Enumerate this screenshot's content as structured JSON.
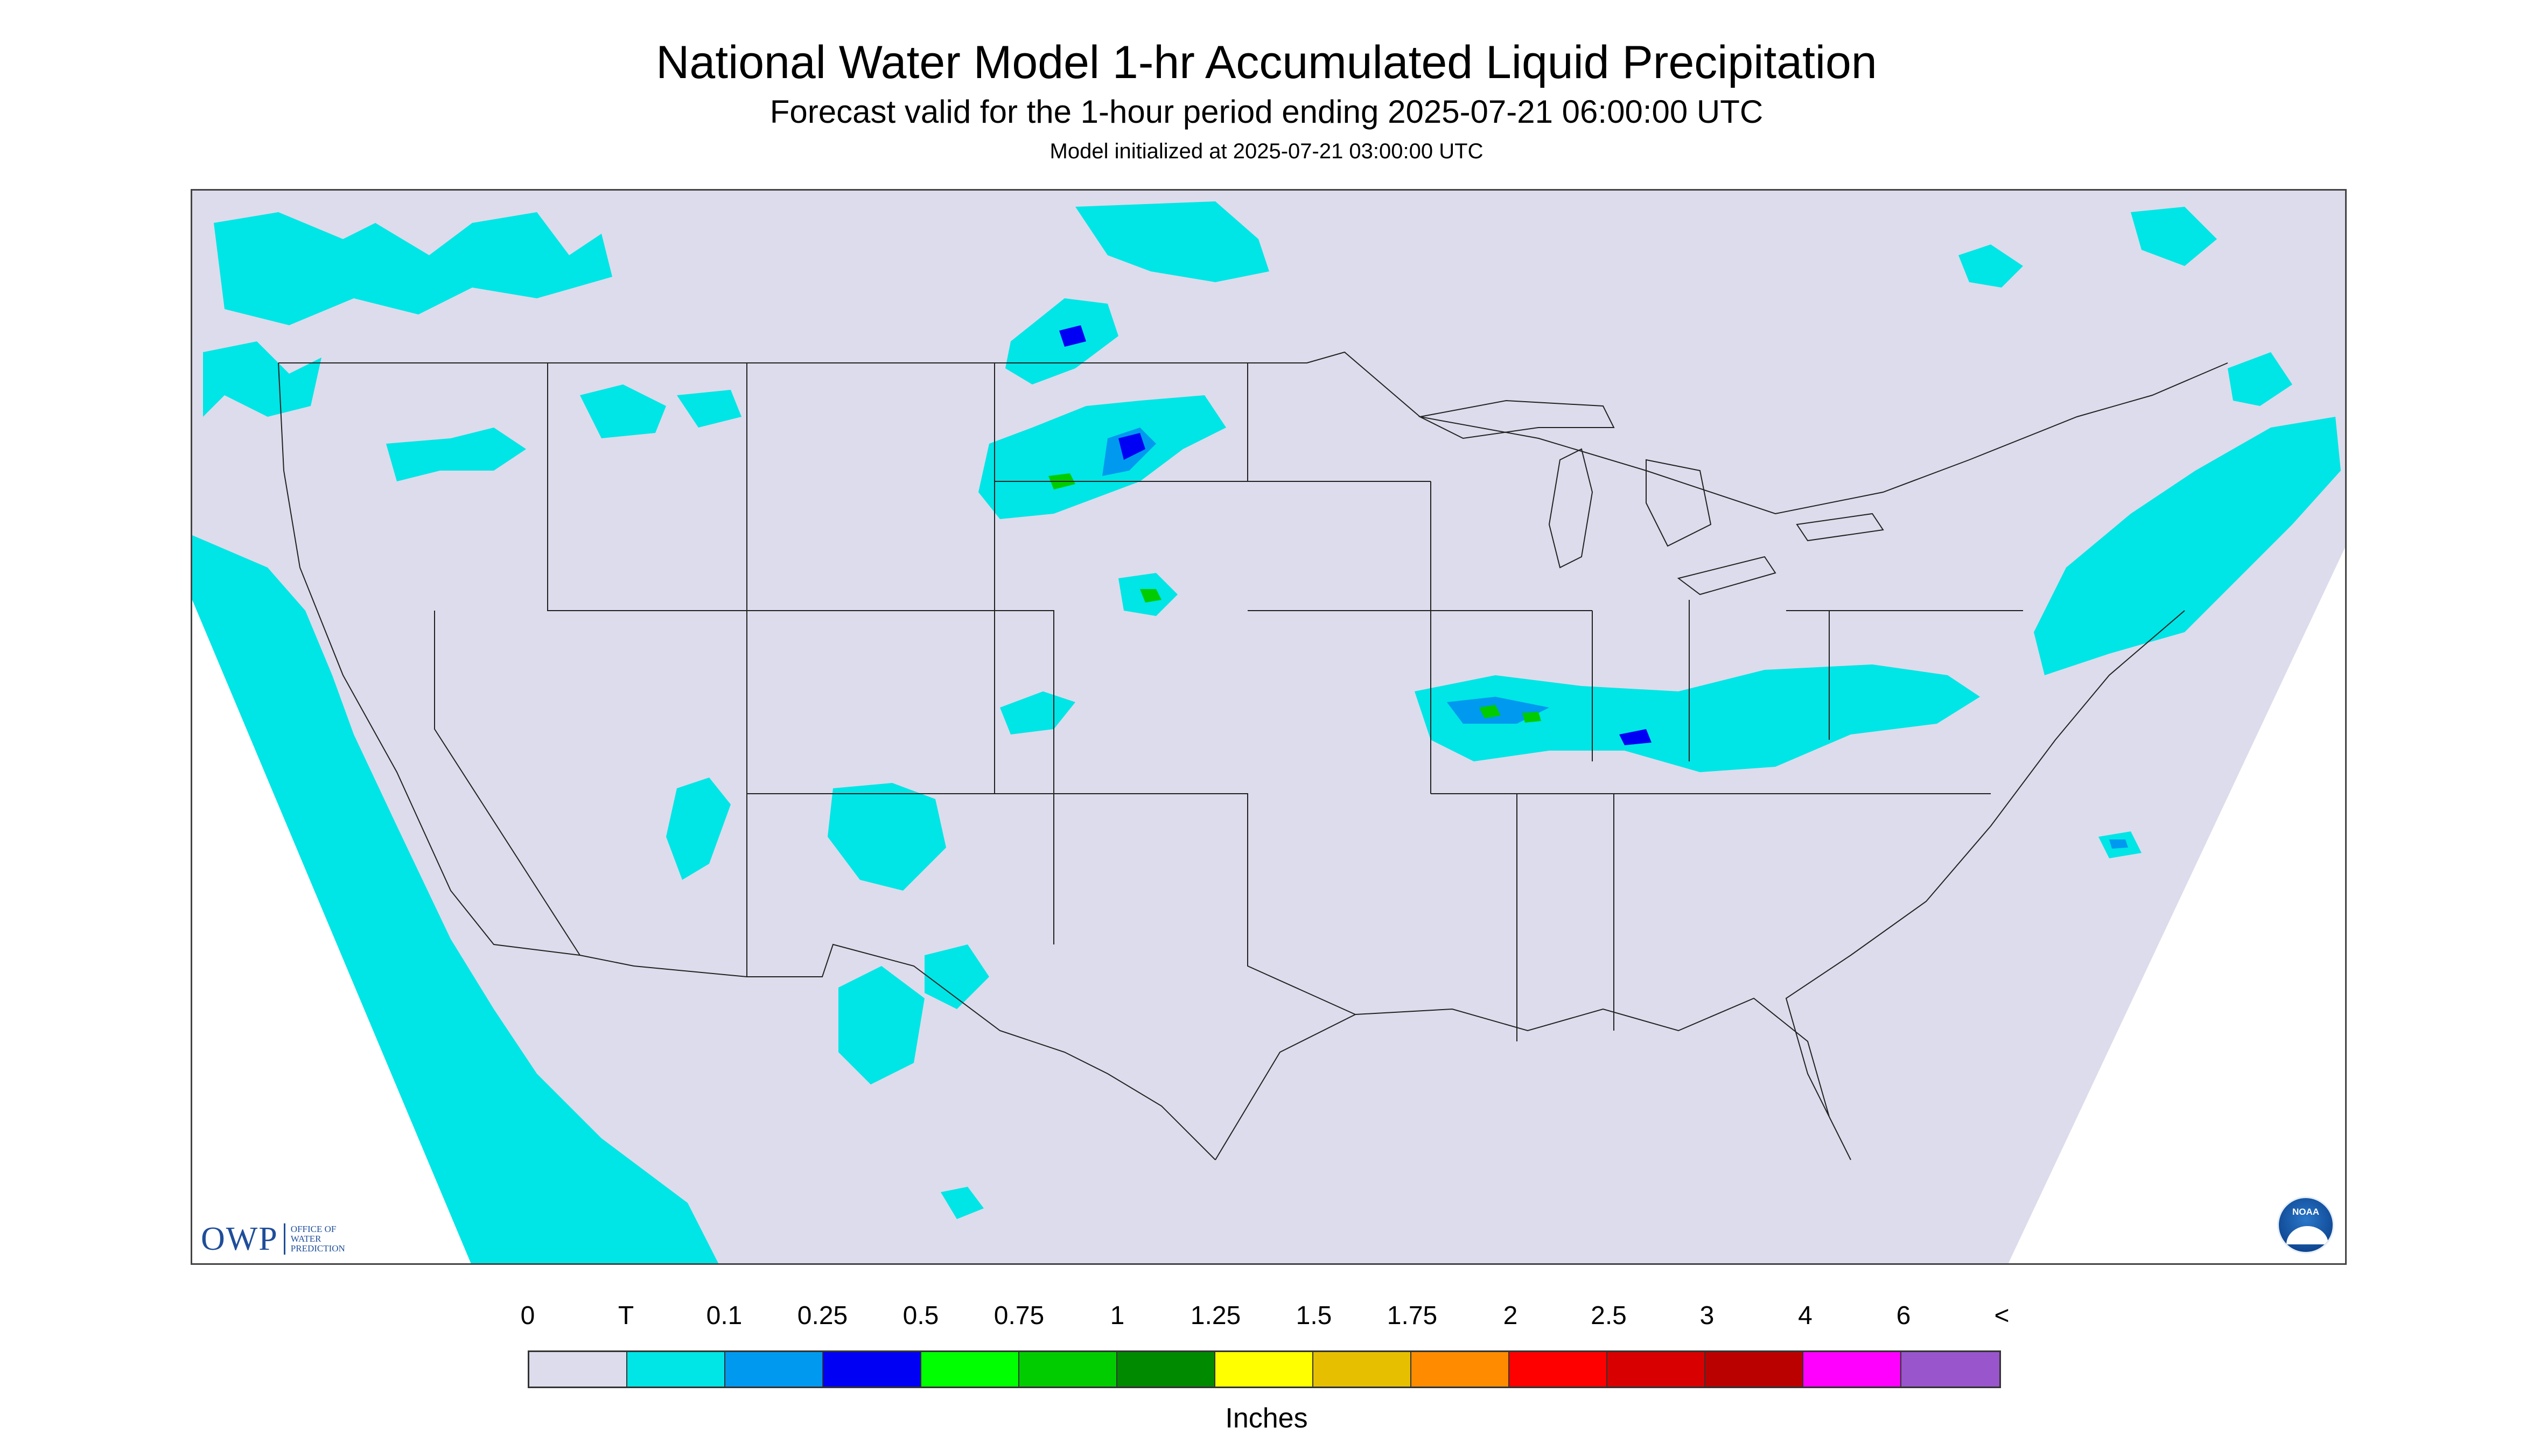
{
  "header": {
    "title": "National Water Model 1-hr Accumulated Liquid Precipitation",
    "subtitle": "Forecast valid for the 1-hour period ending 2025-07-21 06:00:00 UTC",
    "init": "Model initialized at 2025-07-21 03:00:00 UTC"
  },
  "map": {
    "background_color": "#dcdcec",
    "outside_domain_color": "#ffffff"
  },
  "logos": {
    "owp": {
      "big": "OWP",
      "line1": "Office of",
      "line2": "Water",
      "line3": "Prediction"
    },
    "noaa": {
      "label": "NOAA"
    }
  },
  "legend": {
    "labels": [
      "0",
      "T",
      "0.1",
      "0.25",
      "0.5",
      "0.75",
      "1",
      "1.25",
      "1.5",
      "1.75",
      "2",
      "2.5",
      "3",
      "4",
      "6",
      "<"
    ],
    "colors": [
      "#dcdcec",
      "#00e5e5",
      "#0099f0",
      "#0000f5",
      "#00ff00",
      "#00cc00",
      "#008a00",
      "#ffff00",
      "#e6c000",
      "#ff8c00",
      "#ff0000",
      "#d80000",
      "#bb0000",
      "#ff00ff",
      "#9955cc"
    ],
    "unit": "Inches"
  }
}
